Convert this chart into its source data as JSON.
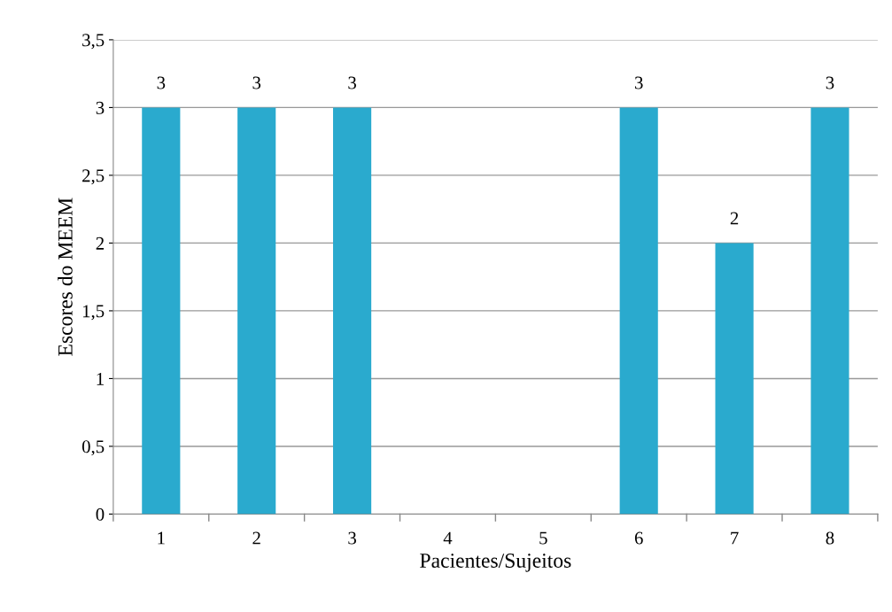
{
  "chart_data": {
    "type": "bar",
    "xlabel": "Pacientes/Sujeitos",
    "ylabel": "Escores do MEEM",
    "categories": [
      "1",
      "2",
      "3",
      "4",
      "5",
      "6",
      "7",
      "8"
    ],
    "values": [
      3,
      3,
      3,
      0,
      0,
      3,
      2,
      3
    ],
    "value_labels": [
      "3",
      "3",
      "3",
      null,
      null,
      "3",
      "2",
      "3"
    ],
    "color": "#2aaace",
    "ylim": [
      0,
      3.5
    ],
    "yticks": [
      0,
      {
        "value": 0.5,
        "label": "0,5"
      },
      1,
      {
        "value": 1.5,
        "label": "1,5"
      },
      2,
      {
        "value": 2.5,
        "label": "2,5"
      },
      3,
      {
        "value": 3.5,
        "label": "3,5"
      }
    ],
    "grid": "y",
    "legend": false
  }
}
